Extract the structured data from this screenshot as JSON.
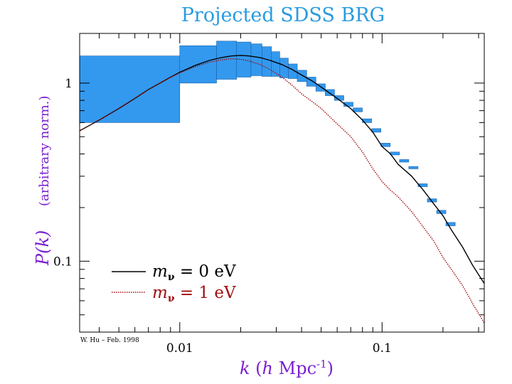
{
  "chart_data": {
    "type": "line",
    "title": "Projected SDSS BRG",
    "xlabel": "k (h Mpc-1)",
    "xlabel_parts": {
      "k": "k",
      "open": " (",
      "h": "h",
      "unit": " Mpc",
      "sup": "-1",
      "close": ")"
    },
    "ylabel_parts": {
      "func": "P(k)",
      "norm": "(arbitrary norm.)"
    },
    "xscale": "log",
    "yscale": "log",
    "xlim": [
      0.0032,
      0.32
    ],
    "ylim": [
      0.04,
      1.9
    ],
    "xticks": [
      {
        "value": 0.01,
        "label": "0.01"
      },
      {
        "value": 0.1,
        "label": "0.1"
      }
    ],
    "yticks": [
      {
        "value": 0.1,
        "label": "0.1"
      },
      {
        "value": 1,
        "label": "1"
      }
    ],
    "colors": {
      "title": "#2a9be0",
      "band": "#3399ee",
      "band_stroke": "#1a5fa8",
      "series_massless": "#000000",
      "series_massive": "#a01010",
      "xlabel": "#7a1fd1",
      "ylabel": "#7a1fd1"
    },
    "series": [
      {
        "name": "m_v = 0 eV",
        "legend_label": {
          "sym": "m",
          "sub": "ν",
          "eq": " = 0 eV"
        },
        "style": "solid",
        "x": [
          0.0032,
          0.004,
          0.005,
          0.006,
          0.007,
          0.008,
          0.009,
          0.01,
          0.012,
          0.014,
          0.016,
          0.018,
          0.02,
          0.022,
          0.025,
          0.028,
          0.032,
          0.036,
          0.04,
          0.045,
          0.05,
          0.06,
          0.07,
          0.08,
          0.09,
          0.1,
          0.11,
          0.12,
          0.14,
          0.16,
          0.18,
          0.2,
          0.22,
          0.25,
          0.28,
          0.32
        ],
        "y": [
          0.54,
          0.62,
          0.72,
          0.82,
          0.92,
          1.0,
          1.08,
          1.15,
          1.26,
          1.34,
          1.39,
          1.42,
          1.43,
          1.42,
          1.39,
          1.34,
          1.27,
          1.19,
          1.11,
          1.03,
          0.95,
          0.82,
          0.72,
          0.62,
          0.53,
          0.44,
          0.4,
          0.35,
          0.3,
          0.25,
          0.21,
          0.18,
          0.15,
          0.12,
          0.095,
          0.075
        ]
      },
      {
        "name": "m_v = 1 eV",
        "legend_label": {
          "sym": "m",
          "sub": "ν",
          "eq": " = 1 eV"
        },
        "style": "dotted",
        "x": [
          0.0032,
          0.004,
          0.005,
          0.006,
          0.007,
          0.008,
          0.009,
          0.01,
          0.012,
          0.014,
          0.016,
          0.018,
          0.02,
          0.022,
          0.025,
          0.028,
          0.032,
          0.036,
          0.04,
          0.045,
          0.05,
          0.06,
          0.07,
          0.08,
          0.09,
          0.1,
          0.11,
          0.12,
          0.14,
          0.16,
          0.18,
          0.2,
          0.22,
          0.25,
          0.28,
          0.32
        ],
        "y": [
          0.54,
          0.62,
          0.72,
          0.82,
          0.92,
          1.0,
          1.08,
          1.14,
          1.24,
          1.31,
          1.35,
          1.37,
          1.36,
          1.33,
          1.27,
          1.19,
          1.08,
          0.97,
          0.87,
          0.79,
          0.72,
          0.59,
          0.5,
          0.41,
          0.33,
          0.28,
          0.25,
          0.23,
          0.19,
          0.155,
          0.13,
          0.105,
          0.09,
          0.073,
          0.058,
          0.045
        ]
      }
    ],
    "error_boxes": [
      {
        "k1": 0.0032,
        "k2": 0.01,
        "ylo": 0.6,
        "yhi": 1.42
      },
      {
        "k1": 0.01,
        "k2": 0.0152,
        "ylo": 1.0,
        "yhi": 1.62
      },
      {
        "k1": 0.0152,
        "k2": 0.0191,
        "ylo": 1.05,
        "yhi": 1.72
      },
      {
        "k1": 0.0191,
        "k2": 0.0225,
        "ylo": 1.08,
        "yhi": 1.7
      },
      {
        "k1": 0.0225,
        "k2": 0.0255,
        "ylo": 1.1,
        "yhi": 1.66
      },
      {
        "k1": 0.0255,
        "k2": 0.0284,
        "ylo": 1.09,
        "yhi": 1.6
      },
      {
        "k1": 0.0284,
        "k2": 0.0312,
        "ylo": 1.09,
        "yhi": 1.5
      },
      {
        "k1": 0.0312,
        "k2": 0.0344,
        "ylo": 1.07,
        "yhi": 1.38
      },
      {
        "k1": 0.0344,
        "k2": 0.0381,
        "ylo": 1.06,
        "yhi": 1.28
      },
      {
        "k1": 0.0381,
        "k2": 0.0424,
        "ylo": 1.02,
        "yhi": 1.18
      },
      {
        "k1": 0.0424,
        "k2": 0.0471,
        "ylo": 0.96,
        "yhi": 1.08
      },
      {
        "k1": 0.0471,
        "k2": 0.0524,
        "ylo": 0.9,
        "yhi": 0.99
      },
      {
        "k1": 0.0524,
        "k2": 0.0582,
        "ylo": 0.85,
        "yhi": 0.92
      },
      {
        "k1": 0.0582,
        "k2": 0.0647,
        "ylo": 0.8,
        "yhi": 0.85
      },
      {
        "k1": 0.0647,
        "k2": 0.0719,
        "ylo": 0.74,
        "yhi": 0.78
      },
      {
        "k1": 0.0719,
        "k2": 0.0799,
        "ylo": 0.69,
        "yhi": 0.725
      },
      {
        "k1": 0.0799,
        "k2": 0.0888,
        "ylo": 0.6,
        "yhi": 0.63
      },
      {
        "k1": 0.0888,
        "k2": 0.0987,
        "ylo": 0.53,
        "yhi": 0.555
      },
      {
        "k1": 0.0987,
        "k2": 0.1097,
        "ylo": 0.44,
        "yhi": 0.46
      },
      {
        "k1": 0.1097,
        "k2": 0.1219,
        "ylo": 0.395,
        "yhi": 0.41
      },
      {
        "k1": 0.1219,
        "k2": 0.1355,
        "ylo": 0.36,
        "yhi": 0.372
      },
      {
        "k1": 0.1355,
        "k2": 0.1506,
        "ylo": 0.33,
        "yhi": 0.34
      },
      {
        "k1": 0.1506,
        "k2": 0.1674,
        "ylo": 0.262,
        "yhi": 0.272
      },
      {
        "k1": 0.1674,
        "k2": 0.1861,
        "ylo": 0.215,
        "yhi": 0.224
      },
      {
        "k1": 0.1861,
        "k2": 0.2068,
        "ylo": 0.185,
        "yhi": 0.193
      },
      {
        "k1": 0.2068,
        "k2": 0.2299,
        "ylo": 0.158,
        "yhi": 0.165
      }
    ],
    "credit": "W. Hu – Feb. 1998"
  }
}
